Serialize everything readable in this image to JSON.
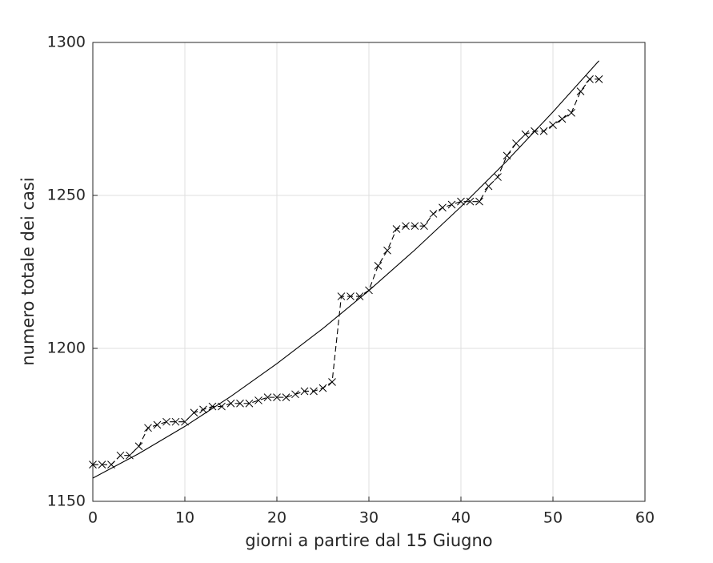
{
  "chart_data": {
    "type": "line",
    "xlabel": "giorni a partire dal 15 Giugno",
    "ylabel": "numero totale dei casi",
    "xlim": [
      0,
      60
    ],
    "xticks": [
      0,
      10,
      20,
      30,
      40,
      50,
      60
    ],
    "ylim": [
      1150,
      1300
    ],
    "yticks": [
      1150,
      1200,
      1250,
      1300
    ],
    "grid": true,
    "series": [
      {
        "color": "#000000",
        "linestyle": "dashed",
        "marker": "x",
        "x": [
          0,
          1,
          2,
          3,
          4,
          5,
          6,
          7,
          8,
          9,
          10,
          11,
          12,
          13,
          14,
          15,
          16,
          17,
          18,
          19,
          20,
          21,
          22,
          23,
          24,
          25,
          26,
          27,
          28,
          29,
          30,
          31,
          32,
          33,
          34,
          35,
          36,
          37,
          38,
          39,
          40,
          41,
          42,
          43,
          44,
          45,
          46,
          47,
          48,
          49,
          50,
          51,
          52,
          53,
          54,
          55
        ],
        "values": [
          1162,
          1162,
          1162,
          1165,
          1165,
          1168,
          1174,
          1175,
          1176,
          1176,
          1176,
          1179,
          1180,
          1181,
          1181,
          1182,
          1182,
          1182,
          1183,
          1184,
          1184,
          1184,
          1185,
          1186,
          1186,
          1187,
          1189,
          1217,
          1217,
          1217,
          1219,
          1227,
          1232,
          1239,
          1240,
          1240,
          1240,
          1244,
          1246,
          1247,
          1248,
          1248,
          1248,
          1253,
          1256,
          1263,
          1267,
          1270,
          1271,
          1271,
          1273,
          1275,
          1277,
          1284,
          1288,
          1288
        ]
      },
      {
        "color": "#000000",
        "linestyle": "solid",
        "x": [
          0,
          5,
          10,
          15,
          20,
          25,
          30,
          35,
          40,
          45,
          50,
          55
        ],
        "values": [
          1157.6,
          1165.6,
          1174.5,
          1184.3,
          1195.0,
          1206.5,
          1218.9,
          1232.2,
          1246.3,
          1261.3,
          1277.3,
          1294.0
        ]
      }
    ]
  }
}
